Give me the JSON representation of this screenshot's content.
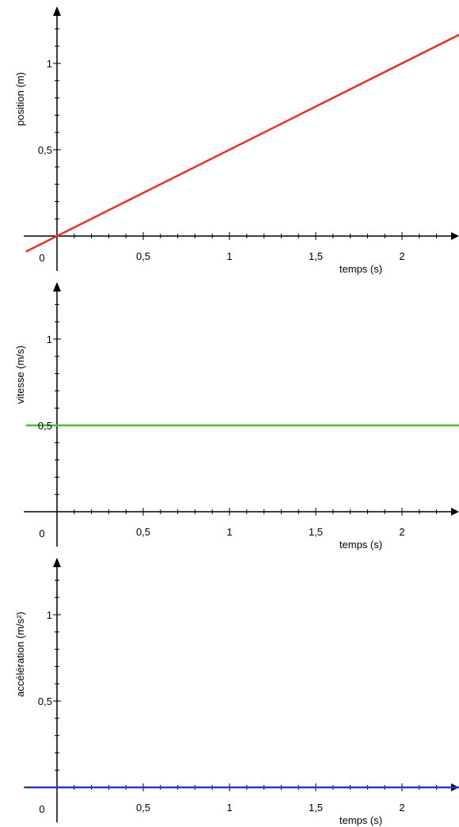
{
  "chart_data": [
    {
      "type": "line",
      "xlabel": "temps (s)",
      "ylabel": "position (m)",
      "x_ticks": [
        "0,5",
        "1",
        "1,5",
        "2"
      ],
      "y_ticks": [
        "0,5",
        "1"
      ],
      "origin_label": "0",
      "xlim": [
        -0.18,
        2.35
      ],
      "ylim": [
        -0.1,
        1.3
      ],
      "series": [
        {
          "x": [
            -0.18,
            2.35
          ],
          "y": [
            -0.09,
            1.175
          ],
          "color": "#e8321e"
        }
      ]
    },
    {
      "type": "line",
      "xlabel": "temps (s)",
      "ylabel": "vitesse (m/s)",
      "x_ticks": [
        "0,5",
        "1",
        "1,5",
        "2"
      ],
      "y_ticks": [
        "0,5",
        "1"
      ],
      "origin_label": "0",
      "xlim": [
        -0.18,
        2.35
      ],
      "ylim": [
        -0.1,
        1.3
      ],
      "series": [
        {
          "x": [
            -0.18,
            2.35
          ],
          "y": [
            0.5,
            0.5
          ],
          "color": "#4cc02a"
        }
      ]
    },
    {
      "type": "line",
      "xlabel": "temps (s)",
      "ylabel": "accélération (m/s²)",
      "x_ticks": [
        "0,5",
        "1",
        "1,5",
        "2"
      ],
      "y_ticks": [
        "0,5",
        "1"
      ],
      "origin_label": "0",
      "xlim": [
        -0.18,
        2.35
      ],
      "ylim": [
        -0.1,
        1.3
      ],
      "series": [
        {
          "x": [
            -0.18,
            2.35
          ],
          "y": [
            0,
            0
          ],
          "color": "#1e3cc8"
        }
      ]
    }
  ]
}
